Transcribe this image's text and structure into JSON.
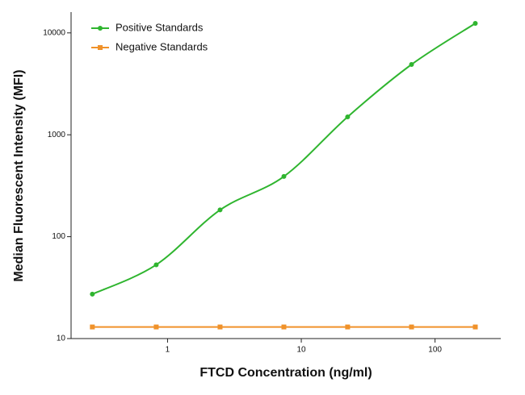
{
  "chart_data": {
    "type": "line",
    "x_label": "FTCD Concentration (ng/ml)",
    "y_label": "Median Fluorescent Intensity (MFI)",
    "x": [
      0.274,
      0.823,
      2.47,
      7.41,
      22.2,
      66.7,
      200
    ],
    "series": [
      {
        "name": "Positive Standards",
        "color": "#2fb52f",
        "marker": "circle",
        "smooth": true,
        "values": [
          27.3,
          53,
          183,
          390,
          1500,
          4900,
          12400
        ]
      },
      {
        "name": "Negative Standards",
        "color": "#f0922a",
        "marker": "square",
        "smooth": false,
        "values": [
          13,
          13,
          13,
          13,
          13,
          13,
          13
        ]
      }
    ],
    "xlim": [
      0.19,
      310
    ],
    "ylim": [
      10,
      16000
    ],
    "xticks": [
      1,
      10,
      100
    ],
    "yticks": [
      10,
      100,
      1000,
      10000
    ],
    "x_log": true,
    "y_log": true,
    "legend": "top-left"
  }
}
